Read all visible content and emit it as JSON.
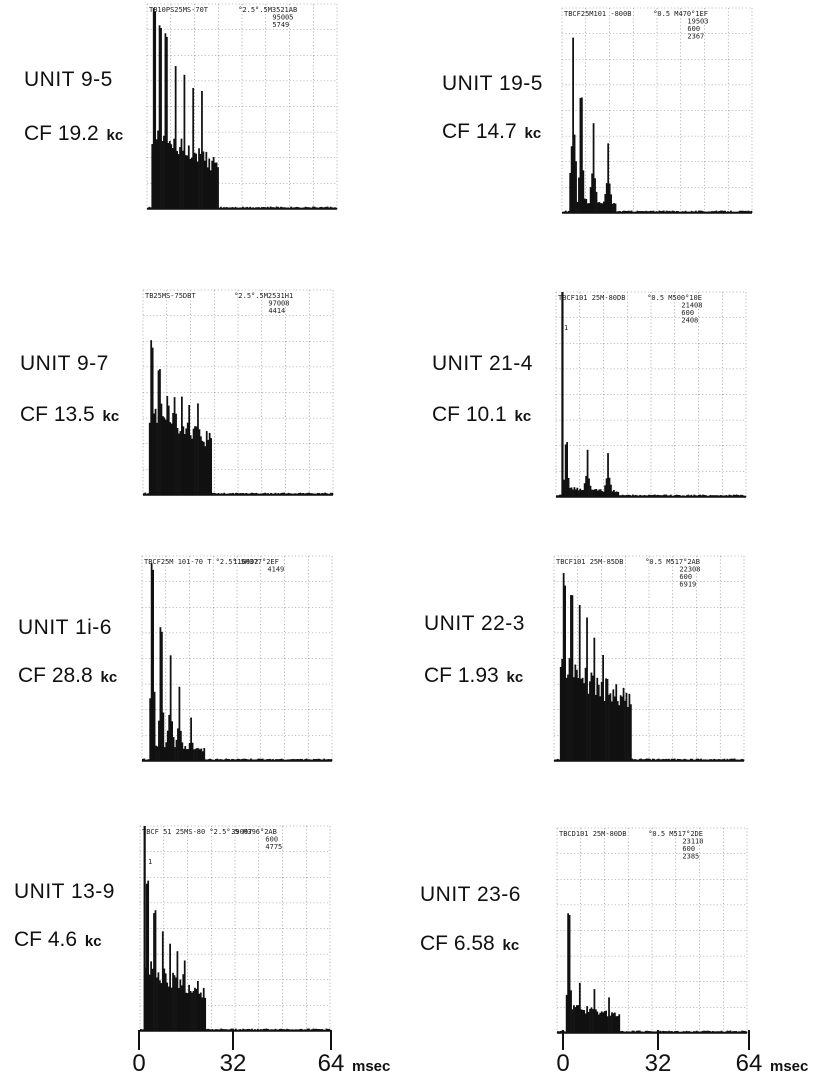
{
  "chart_data": [
    {
      "type": "bar",
      "unit": "UNIT 9-5",
      "cf_value": "CF 19.2",
      "cf_unit": "kc",
      "header": [
        "TB10PS25MS-70T",
        "°2.5°.5M3521AB",
        "95005",
        "5749"
      ],
      "xlim": [
        0,
        64
      ],
      "burst_onset_ms": 2,
      "peaks_ms": [
        2.5,
        4.5,
        6.5,
        9.5,
        12.5,
        15.5,
        18.5
      ],
      "peak_heights": [
        1.0,
        0.95,
        0.9,
        0.7,
        0.68,
        0.62,
        0.58
      ],
      "sustain_level": 0.32,
      "sustain_end_ms": 24,
      "marker_ms": null
    },
    {
      "type": "bar",
      "unit": "UNIT 19-5",
      "cf_value": "CF 14.7",
      "cf_unit": "kc",
      "header": [
        "TBCF25M101 -800B",
        "°0.5  M470°1EF",
        "19503",
        "600",
        "2367"
      ],
      "xlim": [
        0,
        64
      ],
      "burst_onset_ms": 3,
      "peaks_ms": [
        3.8,
        6.5,
        10.5,
        15.5
      ],
      "peak_heights": [
        0.88,
        0.58,
        0.45,
        0.36
      ],
      "sustain_level": 0.06,
      "sustain_end_ms": 18,
      "marker_ms": null
    },
    {
      "type": "bar",
      "unit": "UNIT 9-7",
      "cf_value": "CF 13.5",
      "cf_unit": "kc",
      "header": [
        "TB25MS-75DBT",
        "°2.5°.5M2531H1",
        "97008",
        "4414"
      ],
      "xlim": [
        0,
        64
      ],
      "burst_onset_ms": 2,
      "peaks_ms": [
        3,
        5.5,
        8,
        10.5,
        13,
        15.5,
        18.5
      ],
      "peak_heights": [
        0.78,
        0.62,
        0.52,
        0.5,
        0.48,
        0.47,
        0.46
      ],
      "sustain_level": 0.38,
      "sustain_end_ms": 23,
      "marker_ms": null
    },
    {
      "type": "bar",
      "unit": "UNIT 21-4",
      "cf_value": "CF 10.1",
      "cf_unit": "kc",
      "header": [
        "TBCF101 25M-80DB",
        "°0.5  M500°10E",
        "21408",
        "600",
        "2408"
      ],
      "xlim": [
        0,
        64
      ],
      "burst_onset_ms": 2,
      "peaks_ms": [
        3.5,
        10.5,
        17.5
      ],
      "peak_heights": [
        0.27,
        0.24,
        0.23
      ],
      "sustain_level": 0.04,
      "sustain_end_ms": 21,
      "marker_ms": 1.8
    },
    {
      "type": "bar",
      "unit": "UNIT 1i-6",
      "cf_value": "CF 28.8",
      "cf_unit": "kc",
      "header": [
        "TBCF25M 101-70 T °2.5°.5M377°2EF",
        "116002",
        "4149"
      ],
      "xlim": [
        0,
        64
      ],
      "burst_onset_ms": 3,
      "peaks_ms": [
        3.5,
        6.5,
        9.5,
        12.5,
        16.5
      ],
      "peak_heights": [
        0.98,
        0.66,
        0.52,
        0.38,
        0.22
      ],
      "sustain_level": 0.08,
      "sustain_end_ms": 21,
      "marker_ms": null
    },
    {
      "type": "bar",
      "unit": "UNIT 22-3",
      "cf_value": "CF 1.93",
      "cf_unit": "kc",
      "header": [
        "TBCF101 25M-85DB",
        "°0.5  M517°2AB",
        "22308",
        "600",
        "6919"
      ],
      "xlim": [
        0,
        64
      ],
      "burst_onset_ms": 2,
      "peaks_ms": [
        3.5,
        6,
        8.5,
        11,
        13.5,
        16.5
      ],
      "peak_heights": [
        0.92,
        0.86,
        0.8,
        0.74,
        0.62,
        0.52
      ],
      "sustain_level": 0.42,
      "sustain_end_ms": 26,
      "marker_ms": null
    },
    {
      "type": "bar",
      "unit": "UNIT 13-9",
      "cf_value": "CF 4.6",
      "cf_unit": "kc",
      "header": [
        "TBCF 51 25MS-80 °2.5°.5 M396°2AB",
        "39007",
        "600",
        "4775"
      ],
      "xlim": [
        0,
        64
      ],
      "burst_onset_ms": 1.5,
      "peaks_ms": [
        2.5,
        5,
        7.5,
        10,
        12.5,
        15
      ],
      "peak_heights": [
        0.78,
        0.6,
        0.5,
        0.44,
        0.4,
        0.36
      ],
      "sustain_level": 0.28,
      "sustain_end_ms": 22,
      "marker_ms": 1.2
    },
    {
      "type": "bar",
      "unit": "UNIT 23-6",
      "cf_value": "CF 6.58",
      "cf_unit": "kc",
      "header": [
        "TBCD101 25M-80DB",
        "°0.5  M517°2DE",
        "23110",
        "600",
        "2385"
      ],
      "xlim": [
        0,
        64
      ],
      "burst_onset_ms": 3,
      "peaks_ms": [
        4,
        7.5,
        12.5,
        17.5
      ],
      "peak_heights": [
        0.6,
        0.25,
        0.22,
        0.18
      ],
      "sustain_level": 0.12,
      "sustain_end_ms": 21,
      "marker_ms": null
    }
  ],
  "axes": {
    "ticks": [
      "0",
      "32",
      "64"
    ],
    "unit": "msec"
  }
}
